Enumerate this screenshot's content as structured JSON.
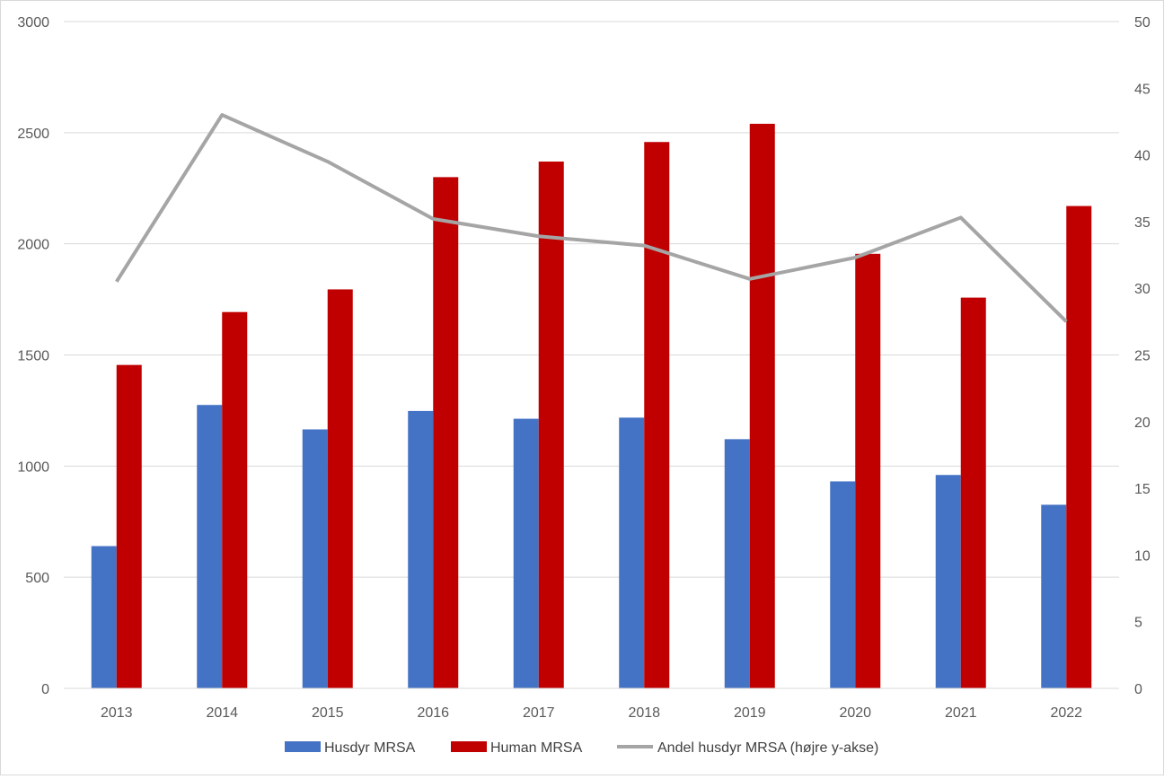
{
  "chart_data": {
    "type": "bar",
    "categories": [
      "2013",
      "2014",
      "2015",
      "2016",
      "2017",
      "2018",
      "2019",
      "2020",
      "2021",
      "2022"
    ],
    "series": [
      {
        "name": "Husdyr MRSA",
        "type": "bar",
        "axis": "left",
        "color": "#4472C4",
        "values": [
          640,
          1275,
          1165,
          1248,
          1213,
          1218,
          1121,
          931,
          960,
          826
        ]
      },
      {
        "name": "Human MRSA",
        "type": "bar",
        "axis": "left",
        "color": "#C00000",
        "values": [
          1455,
          1693,
          1795,
          2300,
          2370,
          2458,
          2540,
          1955,
          1758,
          2170
        ]
      },
      {
        "name": "Andel husdyr MRSA (højre y-akse)",
        "type": "line",
        "axis": "right",
        "color": "#A5A5A5",
        "values": [
          30.5,
          43.0,
          39.5,
          35.2,
          33.9,
          33.2,
          30.7,
          32.3,
          35.3,
          27.5
        ]
      }
    ],
    "ylim": [
      0,
      3000
    ],
    "y_ticks": [
      "0",
      "500",
      "1000",
      "1500",
      "2000",
      "2500",
      "3000"
    ],
    "y2lim": [
      0,
      50
    ],
    "y2_ticks": [
      "0",
      "5",
      "10",
      "15",
      "20",
      "25",
      "30",
      "35",
      "40",
      "45",
      "50"
    ],
    "grid": true,
    "legend_position": "bottom"
  }
}
